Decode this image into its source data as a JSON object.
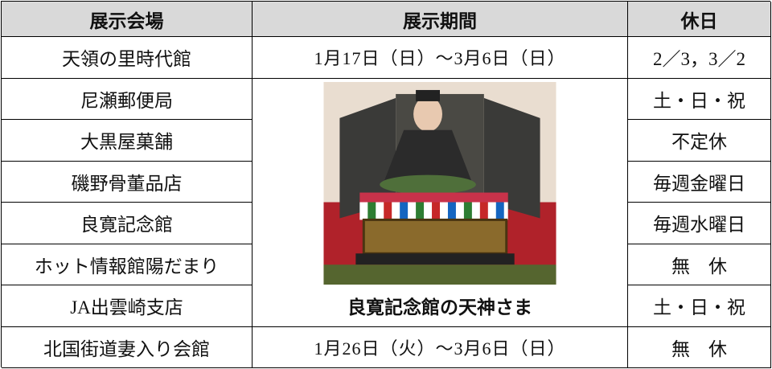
{
  "table": {
    "headers": [
      "展示会場",
      "展示期間",
      "休日"
    ],
    "rows": [
      [
        "天領の里時代館",
        "1月17日（日）～3月6日（日）",
        "2／3，3／2"
      ],
      [
        "尼瀬郵便局",
        "土・日・祝"
      ],
      [
        "大黒屋菓舗",
        "不定休"
      ],
      [
        "磯野骨董品店",
        "毎週金曜日"
      ],
      [
        "良寛記念館",
        "毎週水曜日"
      ],
      [
        "ホット情報館陽だまり",
        "無　休"
      ],
      [
        "JA出雲崎支店",
        "土・日・祝"
      ],
      [
        "北国街道妻入り会館",
        "1月26日（火）～3月6日（日）",
        "無　休"
      ]
    ]
  },
  "photo_caption": "良寛記念館の天神さま"
}
